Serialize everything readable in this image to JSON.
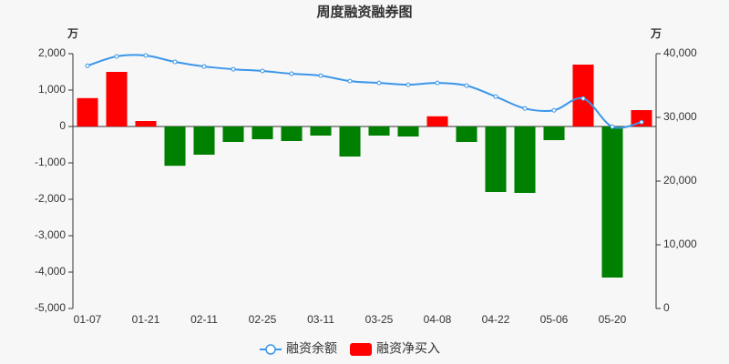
{
  "chart_data": {
    "type": "bar",
    "title": "周度融资融券图",
    "y_unit": "万",
    "y2_unit": "万",
    "categories": [
      "01-07",
      null,
      "01-21",
      null,
      "02-11",
      null,
      "02-25",
      null,
      "03-11",
      null,
      "03-25",
      null,
      "04-08",
      null,
      "04-22",
      null,
      "05-06",
      null,
      "05-20",
      null
    ],
    "series": [
      {
        "name": "融资余额",
        "type": "line",
        "axis": "y2",
        "color": "#3a96ea",
        "values": [
          38100,
          39570,
          39710,
          38710,
          37990,
          37560,
          37280,
          36850,
          36560,
          35700,
          35410,
          35130,
          35410,
          34980,
          33260,
          31400,
          31110,
          32970,
          28530,
          29250
        ]
      },
      {
        "name": "融资净买入",
        "type": "bar",
        "color": "#ff0000",
        "negative_color": "#008000",
        "values": [
          780,
          1500,
          150,
          -1080,
          -775,
          -425,
          -350,
          -400,
          -250,
          -825,
          -250,
          -275,
          280,
          -425,
          -1800,
          -1825,
          -375,
          1700,
          -4150,
          450
        ]
      }
    ],
    "ylim": [
      -5000,
      2000
    ],
    "yticks": [
      {
        "value": -5000,
        "label": "-5,000"
      },
      {
        "value": -4000,
        "label": "-4,000"
      },
      {
        "value": -3000,
        "label": "-3,000"
      },
      {
        "value": -2000,
        "label": "-2,000"
      },
      {
        "value": -1000,
        "label": "-1,000"
      },
      0,
      {
        "value": 1000,
        "label": "1,000"
      },
      {
        "value": 2000,
        "label": "2,000"
      }
    ],
    "y2lim": [
      0,
      40000
    ],
    "y2ticks": [
      0,
      {
        "value": 10000,
        "label": "10,000"
      },
      {
        "value": 20000,
        "label": "20,000"
      },
      {
        "value": 30000,
        "label": "30,000"
      },
      {
        "value": 40000,
        "label": "40,000"
      }
    ]
  }
}
